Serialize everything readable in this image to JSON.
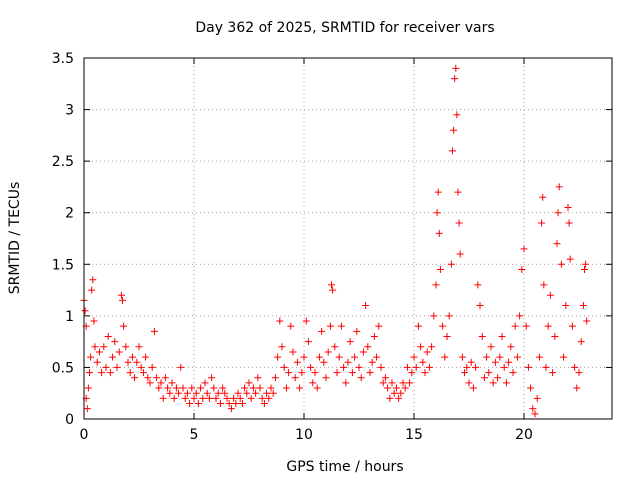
{
  "chart_data": {
    "type": "scatter",
    "title": "Day 362 of 2025, SRMTID for receiver vars",
    "xlabel": "GPS time / hours",
    "ylabel": "SRMTID / TECUs",
    "xlim": [
      0,
      24.0
    ],
    "ylim": [
      0,
      3.5
    ],
    "xticks": [
      0,
      5,
      10,
      15,
      20
    ],
    "xtick_labels": [
      "0",
      "5",
      "10",
      "15",
      "20"
    ],
    "yticks": [
      0,
      0.5,
      1,
      1.5,
      2,
      2.5,
      3,
      3.5
    ],
    "ytick_labels": [
      "0",
      "0.5",
      "1",
      "1.5",
      "2",
      "2.5",
      "3",
      "3.5"
    ],
    "grid": true,
    "marker": "+",
    "color": "#ff0000",
    "series": [
      {
        "name": "SRMTID",
        "points": [
          [
            0.0,
            1.15
          ],
          [
            0.05,
            1.05
          ],
          [
            0.1,
            0.9
          ],
          [
            0.1,
            0.2
          ],
          [
            0.15,
            0.1
          ],
          [
            0.2,
            0.3
          ],
          [
            0.25,
            0.45
          ],
          [
            0.3,
            0.6
          ],
          [
            0.35,
            1.25
          ],
          [
            0.4,
            1.35
          ],
          [
            0.45,
            0.95
          ],
          [
            0.5,
            0.7
          ],
          [
            0.6,
            0.55
          ],
          [
            0.7,
            0.65
          ],
          [
            0.8,
            0.45
          ],
          [
            0.9,
            0.7
          ],
          [
            1.0,
            0.5
          ],
          [
            1.1,
            0.8
          ],
          [
            1.2,
            0.45
          ],
          [
            1.3,
            0.6
          ],
          [
            1.4,
            0.75
          ],
          [
            1.5,
            0.5
          ],
          [
            1.6,
            0.65
          ],
          [
            1.7,
            1.2
          ],
          [
            1.75,
            1.15
          ],
          [
            1.8,
            0.9
          ],
          [
            1.9,
            0.7
          ],
          [
            2.0,
            0.55
          ],
          [
            2.1,
            0.45
          ],
          [
            2.2,
            0.6
          ],
          [
            2.3,
            0.4
          ],
          [
            2.4,
            0.55
          ],
          [
            2.5,
            0.7
          ],
          [
            2.6,
            0.5
          ],
          [
            2.7,
            0.45
          ],
          [
            2.8,
            0.6
          ],
          [
            2.9,
            0.4
          ],
          [
            3.0,
            0.35
          ],
          [
            3.1,
            0.5
          ],
          [
            3.2,
            0.85
          ],
          [
            3.3,
            0.4
          ],
          [
            3.4,
            0.3
          ],
          [
            3.5,
            0.35
          ],
          [
            3.6,
            0.2
          ],
          [
            3.7,
            0.4
          ],
          [
            3.8,
            0.3
          ],
          [
            3.9,
            0.25
          ],
          [
            4.0,
            0.35
          ],
          [
            4.1,
            0.2
          ],
          [
            4.2,
            0.3
          ],
          [
            4.3,
            0.25
          ],
          [
            4.4,
            0.5
          ],
          [
            4.5,
            0.3
          ],
          [
            4.6,
            0.2
          ],
          [
            4.7,
            0.25
          ],
          [
            4.8,
            0.15
          ],
          [
            4.9,
            0.3
          ],
          [
            5.0,
            0.2
          ],
          [
            5.1,
            0.25
          ],
          [
            5.2,
            0.15
          ],
          [
            5.3,
            0.3
          ],
          [
            5.4,
            0.2
          ],
          [
            5.5,
            0.35
          ],
          [
            5.6,
            0.25
          ],
          [
            5.7,
            0.2
          ],
          [
            5.8,
            0.4
          ],
          [
            5.9,
            0.3
          ],
          [
            6.0,
            0.2
          ],
          [
            6.1,
            0.25
          ],
          [
            6.2,
            0.15
          ],
          [
            6.3,
            0.3
          ],
          [
            6.4,
            0.25
          ],
          [
            6.5,
            0.2
          ],
          [
            6.6,
            0.15
          ],
          [
            6.7,
            0.1
          ],
          [
            6.8,
            0.2
          ],
          [
            6.9,
            0.15
          ],
          [
            7.0,
            0.25
          ],
          [
            7.1,
            0.2
          ],
          [
            7.2,
            0.15
          ],
          [
            7.3,
            0.3
          ],
          [
            7.4,
            0.25
          ],
          [
            7.5,
            0.35
          ],
          [
            7.6,
            0.2
          ],
          [
            7.7,
            0.3
          ],
          [
            7.8,
            0.25
          ],
          [
            7.9,
            0.4
          ],
          [
            8.0,
            0.3
          ],
          [
            8.1,
            0.2
          ],
          [
            8.2,
            0.15
          ],
          [
            8.3,
            0.25
          ],
          [
            8.4,
            0.2
          ],
          [
            8.5,
            0.3
          ],
          [
            8.6,
            0.25
          ],
          [
            8.7,
            0.4
          ],
          [
            8.8,
            0.6
          ],
          [
            8.9,
            0.95
          ],
          [
            9.0,
            0.7
          ],
          [
            9.1,
            0.5
          ],
          [
            9.2,
            0.3
          ],
          [
            9.3,
            0.45
          ],
          [
            9.4,
            0.9
          ],
          [
            9.5,
            0.65
          ],
          [
            9.6,
            0.4
          ],
          [
            9.7,
            0.55
          ],
          [
            9.8,
            0.3
          ],
          [
            9.9,
            0.45
          ],
          [
            10.0,
            0.6
          ],
          [
            10.1,
            0.95
          ],
          [
            10.2,
            0.75
          ],
          [
            10.3,
            0.5
          ],
          [
            10.4,
            0.35
          ],
          [
            10.5,
            0.45
          ],
          [
            10.6,
            0.3
          ],
          [
            10.7,
            0.6
          ],
          [
            10.8,
            0.85
          ],
          [
            10.9,
            0.55
          ],
          [
            11.0,
            0.4
          ],
          [
            11.1,
            0.65
          ],
          [
            11.2,
            0.9
          ],
          [
            11.25,
            1.3
          ],
          [
            11.3,
            1.25
          ],
          [
            11.4,
            0.7
          ],
          [
            11.5,
            0.45
          ],
          [
            11.6,
            0.6
          ],
          [
            11.7,
            0.9
          ],
          [
            11.8,
            0.5
          ],
          [
            11.9,
            0.35
          ],
          [
            12.0,
            0.55
          ],
          [
            12.1,
            0.75
          ],
          [
            12.2,
            0.45
          ],
          [
            12.3,
            0.6
          ],
          [
            12.4,
            0.85
          ],
          [
            12.5,
            0.5
          ],
          [
            12.6,
            0.4
          ],
          [
            12.7,
            0.65
          ],
          [
            12.8,
            1.1
          ],
          [
            12.9,
            0.7
          ],
          [
            13.0,
            0.45
          ],
          [
            13.1,
            0.55
          ],
          [
            13.2,
            0.8
          ],
          [
            13.3,
            0.6
          ],
          [
            13.4,
            0.9
          ],
          [
            13.5,
            0.5
          ],
          [
            13.6,
            0.35
          ],
          [
            13.7,
            0.4
          ],
          [
            13.8,
            0.3
          ],
          [
            13.9,
            0.2
          ],
          [
            14.0,
            0.35
          ],
          [
            14.1,
            0.25
          ],
          [
            14.2,
            0.3
          ],
          [
            14.3,
            0.2
          ],
          [
            14.4,
            0.25
          ],
          [
            14.5,
            0.35
          ],
          [
            14.6,
            0.3
          ],
          [
            14.7,
            0.5
          ],
          [
            14.8,
            0.35
          ],
          [
            14.9,
            0.45
          ],
          [
            15.0,
            0.6
          ],
          [
            15.1,
            0.5
          ],
          [
            15.2,
            0.9
          ],
          [
            15.3,
            0.7
          ],
          [
            15.4,
            0.55
          ],
          [
            15.5,
            0.45
          ],
          [
            15.6,
            0.65
          ],
          [
            15.7,
            0.5
          ],
          [
            15.8,
            0.7
          ],
          [
            15.9,
            1.0
          ],
          [
            16.0,
            1.3
          ],
          [
            16.05,
            2.0
          ],
          [
            16.1,
            2.2
          ],
          [
            16.15,
            1.8
          ],
          [
            16.2,
            1.45
          ],
          [
            16.3,
            0.9
          ],
          [
            16.4,
            0.6
          ],
          [
            16.5,
            0.8
          ],
          [
            16.6,
            1.0
          ],
          [
            16.7,
            1.5
          ],
          [
            16.75,
            2.6
          ],
          [
            16.8,
            2.8
          ],
          [
            16.85,
            3.3
          ],
          [
            16.9,
            3.4
          ],
          [
            16.95,
            2.95
          ],
          [
            17.0,
            2.2
          ],
          [
            17.05,
            1.9
          ],
          [
            17.1,
            1.6
          ],
          [
            17.2,
            0.6
          ],
          [
            17.3,
            0.45
          ],
          [
            17.4,
            0.5
          ],
          [
            17.5,
            0.35
          ],
          [
            17.6,
            0.55
          ],
          [
            17.7,
            0.3
          ],
          [
            17.8,
            0.5
          ],
          [
            17.9,
            1.3
          ],
          [
            18.0,
            1.1
          ],
          [
            18.1,
            0.8
          ],
          [
            18.2,
            0.4
          ],
          [
            18.3,
            0.6
          ],
          [
            18.4,
            0.45
          ],
          [
            18.5,
            0.7
          ],
          [
            18.6,
            0.35
          ],
          [
            18.7,
            0.55
          ],
          [
            18.8,
            0.4
          ],
          [
            18.9,
            0.6
          ],
          [
            19.0,
            0.8
          ],
          [
            19.1,
            0.5
          ],
          [
            19.2,
            0.35
          ],
          [
            19.3,
            0.55
          ],
          [
            19.4,
            0.7
          ],
          [
            19.5,
            0.45
          ],
          [
            19.6,
            0.9
          ],
          [
            19.7,
            0.6
          ],
          [
            19.8,
            1.0
          ],
          [
            19.9,
            1.45
          ],
          [
            20.0,
            1.65
          ],
          [
            20.1,
            0.9
          ],
          [
            20.2,
            0.5
          ],
          [
            20.3,
            0.3
          ],
          [
            20.4,
            0.1
          ],
          [
            20.5,
            0.05
          ],
          [
            20.6,
            0.2
          ],
          [
            20.7,
            0.6
          ],
          [
            20.8,
            1.9
          ],
          [
            20.85,
            2.15
          ],
          [
            20.9,
            1.3
          ],
          [
            21.0,
            0.5
          ],
          [
            21.1,
            0.9
          ],
          [
            21.2,
            1.2
          ],
          [
            21.3,
            0.45
          ],
          [
            21.4,
            0.8
          ],
          [
            21.5,
            1.7
          ],
          [
            21.55,
            2.0
          ],
          [
            21.6,
            2.25
          ],
          [
            21.7,
            1.5
          ],
          [
            21.8,
            0.6
          ],
          [
            21.9,
            1.1
          ],
          [
            22.0,
            2.05
          ],
          [
            22.05,
            1.9
          ],
          [
            22.1,
            1.55
          ],
          [
            22.2,
            0.9
          ],
          [
            22.3,
            0.5
          ],
          [
            22.4,
            0.3
          ],
          [
            22.5,
            0.45
          ],
          [
            22.6,
            0.75
          ],
          [
            22.7,
            1.1
          ],
          [
            22.75,
            1.45
          ],
          [
            22.8,
            1.5
          ],
          [
            22.85,
            0.95
          ]
        ]
      }
    ]
  }
}
